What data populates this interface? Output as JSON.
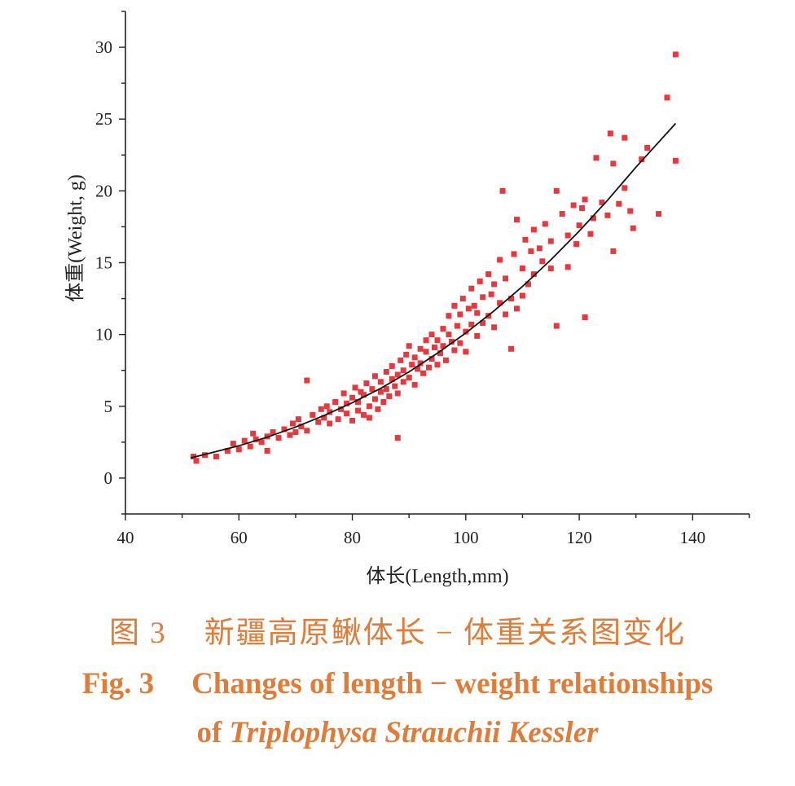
{
  "caption": {
    "cn_fig": "图 3",
    "cn_title": "新疆高原鳅体长 − 体重关系图变化",
    "en_fig": "Fig. 3",
    "en_title": "Changes of length − weight relationships",
    "en_of": "of",
    "en_species": "Triplophysa Strauchii Kessler"
  },
  "colors": {
    "points": "#e8383d",
    "curve": "#111111",
    "caption": "#e07b38",
    "axis": "#222222"
  },
  "chart_data": {
    "type": "scatter",
    "title": "",
    "xlabel": "体长(Length,mm)",
    "ylabel": "体重(Weight, g)",
    "xlim": [
      40,
      150
    ],
    "ylim": [
      -2.5,
      32.5
    ],
    "xticks": [
      40,
      60,
      80,
      100,
      120,
      140
    ],
    "yticks": [
      0,
      5,
      10,
      15,
      20,
      25,
      30
    ],
    "grid": false,
    "legend": "none",
    "series": [
      {
        "kind": "points",
        "points": [
          [
            52,
            1.5
          ],
          [
            52.5,
            1.2
          ],
          [
            54,
            1.6
          ],
          [
            56,
            1.5
          ],
          [
            58,
            1.9
          ],
          [
            59,
            2.4
          ],
          [
            60,
            2.0
          ],
          [
            61,
            2.6
          ],
          [
            62,
            2.2
          ],
          [
            62.5,
            3.1
          ],
          [
            63,
            2.7
          ],
          [
            64,
            2.5
          ],
          [
            65,
            2.9
          ],
          [
            65,
            1.9
          ],
          [
            66,
            3.2
          ],
          [
            67,
            2.8
          ],
          [
            68,
            3.4
          ],
          [
            69,
            3.0
          ],
          [
            69.5,
            3.8
          ],
          [
            70,
            3.2
          ],
          [
            70.5,
            4.1
          ],
          [
            71,
            3.6
          ],
          [
            72,
            3.3
          ],
          [
            72,
            6.8
          ],
          [
            73,
            4.4
          ],
          [
            74,
            3.9
          ],
          [
            74.5,
            4.8
          ],
          [
            75,
            4.2
          ],
          [
            75.5,
            5.0
          ],
          [
            76,
            3.8
          ],
          [
            76,
            4.6
          ],
          [
            77,
            5.3
          ],
          [
            77.5,
            4.1
          ],
          [
            78,
            4.8
          ],
          [
            78.5,
            5.9
          ],
          [
            79,
            4.5
          ],
          [
            79,
            5.2
          ],
          [
            80,
            4.0
          ],
          [
            80,
            5.6
          ],
          [
            80.5,
            6.3
          ],
          [
            81,
            4.7
          ],
          [
            81,
            5.3
          ],
          [
            81.5,
            6.0
          ],
          [
            82,
            4.4
          ],
          [
            82,
            5.8
          ],
          [
            82.5,
            6.6
          ],
          [
            83,
            5.0
          ],
          [
            83,
            4.2
          ],
          [
            83.5,
            6.2
          ],
          [
            84,
            5.5
          ],
          [
            84,
            7.1
          ],
          [
            84.5,
            4.8
          ],
          [
            85,
            6.0
          ],
          [
            85,
            6.7
          ],
          [
            85.5,
            5.3
          ],
          [
            86,
            7.4
          ],
          [
            86,
            6.2
          ],
          [
            86.5,
            5.7
          ],
          [
            87,
            6.9
          ],
          [
            87,
            7.8
          ],
          [
            87.5,
            6.4
          ],
          [
            88,
            5.9
          ],
          [
            88,
            2.8
          ],
          [
            88,
            7.2
          ],
          [
            88.5,
            8.2
          ],
          [
            89,
            6.7
          ],
          [
            89,
            7.5
          ],
          [
            89.5,
            8.6
          ],
          [
            90,
            7.0
          ],
          [
            90,
            9.2
          ],
          [
            90.5,
            7.9
          ],
          [
            91,
            6.5
          ],
          [
            91,
            8.4
          ],
          [
            91.5,
            7.6
          ],
          [
            92,
            9.0
          ],
          [
            92,
            8.0
          ],
          [
            92.5,
            7.3
          ],
          [
            93,
            8.8
          ],
          [
            93,
            9.6
          ],
          [
            93.5,
            7.7
          ],
          [
            94,
            8.3
          ],
          [
            94,
            10.0
          ],
          [
            94.5,
            9.1
          ],
          [
            95,
            7.9
          ],
          [
            95,
            9.6
          ],
          [
            95.5,
            8.7
          ],
          [
            96,
            10.4
          ],
          [
            96,
            9.2
          ],
          [
            96.5,
            8.2
          ],
          [
            97,
            10.0
          ],
          [
            97,
            11.3
          ],
          [
            97.5,
            9.5
          ],
          [
            98,
            8.9
          ],
          [
            98,
            12.0
          ],
          [
            98.5,
            10.6
          ],
          [
            99,
            9.4
          ],
          [
            99,
            11.4
          ],
          [
            99.5,
            12.5
          ],
          [
            100,
            10.2
          ],
          [
            100,
            8.8
          ],
          [
            100.5,
            11.8
          ],
          [
            101,
            10.7
          ],
          [
            101,
            13.2
          ],
          [
            101.5,
            12.0
          ],
          [
            102,
            9.9
          ],
          [
            102,
            11.5
          ],
          [
            102.5,
            13.7
          ],
          [
            103,
            10.8
          ],
          [
            103,
            12.6
          ],
          [
            104,
            11.3
          ],
          [
            104,
            14.2
          ],
          [
            104.5,
            12.8
          ],
          [
            105,
            10.5
          ],
          [
            105,
            13.5
          ],
          [
            106,
            12.2
          ],
          [
            106,
            15.2
          ],
          [
            106.5,
            20.0
          ],
          [
            107,
            11.4
          ],
          [
            107,
            13.9
          ],
          [
            108,
            12.5
          ],
          [
            108,
            9.0
          ],
          [
            108.5,
            15.6
          ],
          [
            109,
            11.8
          ],
          [
            109,
            18.0
          ],
          [
            110,
            14.6
          ],
          [
            110,
            12.7
          ],
          [
            110.5,
            16.6
          ],
          [
            111,
            13.5
          ],
          [
            111.5,
            15.8
          ],
          [
            112,
            17.3
          ],
          [
            112,
            14.2
          ],
          [
            113,
            16.0
          ],
          [
            113.5,
            15.1
          ],
          [
            114,
            17.7
          ],
          [
            115,
            14.6
          ],
          [
            115,
            16.5
          ],
          [
            116,
            20.0
          ],
          [
            116,
            10.6
          ],
          [
            117,
            18.4
          ],
          [
            118,
            14.7
          ],
          [
            118,
            16.9
          ],
          [
            119,
            19.0
          ],
          [
            119.5,
            16.3
          ],
          [
            120,
            17.6
          ],
          [
            120.5,
            18.8
          ],
          [
            121,
            11.2
          ],
          [
            121,
            19.4
          ],
          [
            122,
            17.0
          ],
          [
            122.5,
            18.1
          ],
          [
            123,
            22.3
          ],
          [
            124,
            19.2
          ],
          [
            125,
            18.3
          ],
          [
            125.5,
            24.0
          ],
          [
            126,
            15.8
          ],
          [
            126,
            21.9
          ],
          [
            127,
            19.1
          ],
          [
            128,
            23.7
          ],
          [
            128,
            20.2
          ],
          [
            129,
            18.6
          ],
          [
            129.5,
            17.4
          ],
          [
            131,
            22.2
          ],
          [
            132,
            23.0
          ],
          [
            134,
            18.4
          ],
          [
            135.5,
            26.5
          ],
          [
            137,
            29.5
          ],
          [
            137,
            22.1
          ]
        ]
      },
      {
        "kind": "curve",
        "x": [
          51.5,
          55,
          60,
          65,
          70,
          75,
          80,
          85,
          90,
          95,
          100,
          105,
          110,
          115,
          120,
          125,
          130,
          137
        ],
        "y": [
          1.4,
          1.75,
          2.25,
          2.85,
          3.55,
          4.35,
          5.25,
          6.25,
          7.4,
          8.7,
          10.1,
          11.65,
          13.35,
          15.2,
          17.2,
          19.35,
          21.65,
          24.7
        ]
      }
    ]
  }
}
